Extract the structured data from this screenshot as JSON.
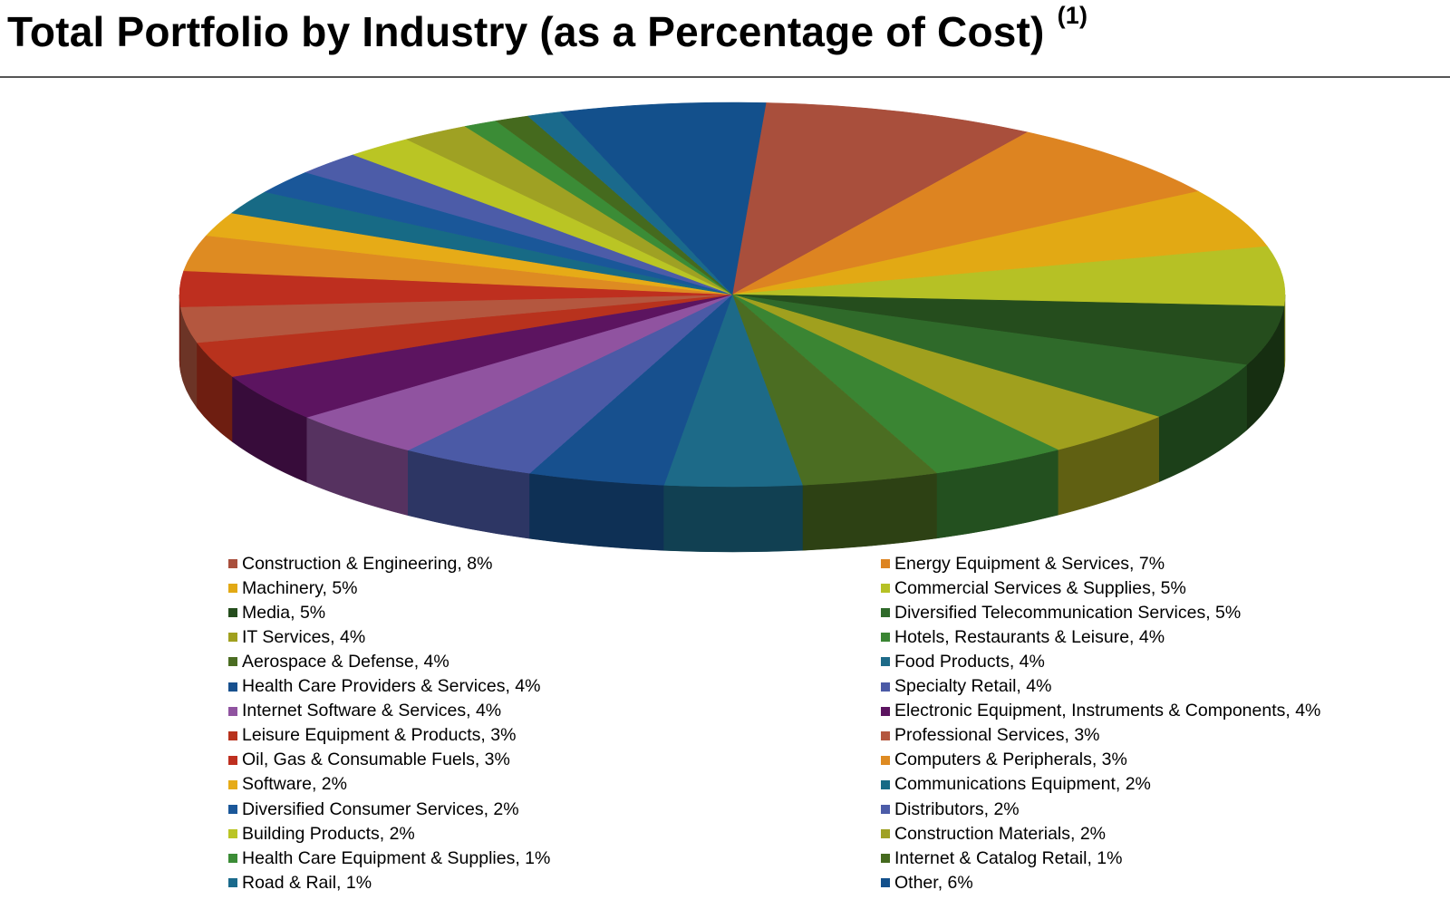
{
  "title": "Total Portfolio by Industry (as a Percentage of Cost)",
  "title_note": "(1)",
  "chart_data": {
    "type": "pie",
    "title": "Total Portfolio by Industry (as a Percentage of Cost)",
    "legend_position": "bottom",
    "unit": "%",
    "slices": [
      {
        "label": "Construction & Engineering",
        "value": 8,
        "text": "Construction & Engineering, 8%",
        "color": "#A94F3C"
      },
      {
        "label": "Energy Equipment & Services",
        "value": 7,
        "text": "Energy Equipment & Services, 7%",
        "color": "#DD8421"
      },
      {
        "label": "Machinery",
        "value": 5,
        "text": "Machinery, 5%",
        "color": "#E2A914"
      },
      {
        "label": "Commercial Services & Supplies",
        "value": 5,
        "text": "Commercial Services & Supplies, 5%",
        "color": "#B6C125"
      },
      {
        "label": "Media",
        "value": 5,
        "text": "Media, 5%",
        "color": "#254D1D"
      },
      {
        "label": "Diversified Telecommunication Services",
        "value": 5,
        "text": "Diversified Telecommunication Services, 5%",
        "color": "#2F6A2A"
      },
      {
        "label": "IT Services",
        "value": 4,
        "text": "IT Services, 4%",
        "color": "#A0A01E"
      },
      {
        "label": "Hotels, Restaurants & Leisure",
        "value": 4,
        "text": "Hotels, Restaurants & Leisure, 4%",
        "color": "#3A8533"
      },
      {
        "label": "Aerospace & Defense",
        "value": 4,
        "text": "Aerospace & Defense, 4%",
        "color": "#4B6D22"
      },
      {
        "label": "Food Products",
        "value": 4,
        "text": "Food Products, 4%",
        "color": "#1D6A88"
      },
      {
        "label": "Health Care Providers & Services",
        "value": 4,
        "text": "Health Care Providers & Services, 4%",
        "color": "#17508E"
      },
      {
        "label": "Specialty Retail",
        "value": 4,
        "text": "Specialty Retail, 4%",
        "color": "#4B5AA6"
      },
      {
        "label": "Internet Software & Services",
        "value": 4,
        "text": "Internet Software & Services, 4%",
        "color": "#9053A0"
      },
      {
        "label": "Electronic Equipment, Instruments & Components",
        "value": 4,
        "text": "Electronic Equipment, Instruments & Components, 4%",
        "color": "#5C1460"
      },
      {
        "label": "Leisure Equipment & Products",
        "value": 3,
        "text": "Leisure Equipment & Products, 3%",
        "color": "#B8321D"
      },
      {
        "label": "Professional Services",
        "value": 3,
        "text": "Professional Services, 3%",
        "color": "#B4573F"
      },
      {
        "label": "Oil, Gas & Consumable Fuels",
        "value": 3,
        "text": "Oil, Gas & Consumable Fuels, 3%",
        "color": "#BE2F1F"
      },
      {
        "label": "Computers & Peripherals",
        "value": 3,
        "text": "Computers & Peripherals, 3%",
        "color": "#DE8B22"
      },
      {
        "label": "Software",
        "value": 2,
        "text": "Software, 2%",
        "color": "#E6AB17"
      },
      {
        "label": "Communications Equipment",
        "value": 2,
        "text": "Communications Equipment, 2%",
        "color": "#176A85"
      },
      {
        "label": "Diversified Consumer Services",
        "value": 2,
        "text": "Diversified Consumer Services, 2%",
        "color": "#1A5799"
      },
      {
        "label": "Distributors",
        "value": 2,
        "text": "Distributors, 2%",
        "color": "#4C5CA8"
      },
      {
        "label": "Building Products",
        "value": 2,
        "text": "Building Products, 2%",
        "color": "#BAC524"
      },
      {
        "label": "Construction Materials",
        "value": 2,
        "text": "Construction Materials, 2%",
        "color": "#9FA123"
      },
      {
        "label": "Health Care Equipment & Supplies",
        "value": 1,
        "text": "Health Care Equipment & Supplies, 1%",
        "color": "#3B8C36"
      },
      {
        "label": "Internet & Catalog Retail",
        "value": 1,
        "text": "Internet & Catalog Retail, 1%",
        "color": "#456A1E"
      },
      {
        "label": "Road & Rail",
        "value": 1,
        "text": "Road & Rail, 1%",
        "color": "#1A6A8C"
      },
      {
        "label": "Other",
        "value": 6,
        "text": "Other, 6%",
        "color": "#13508C"
      }
    ]
  }
}
